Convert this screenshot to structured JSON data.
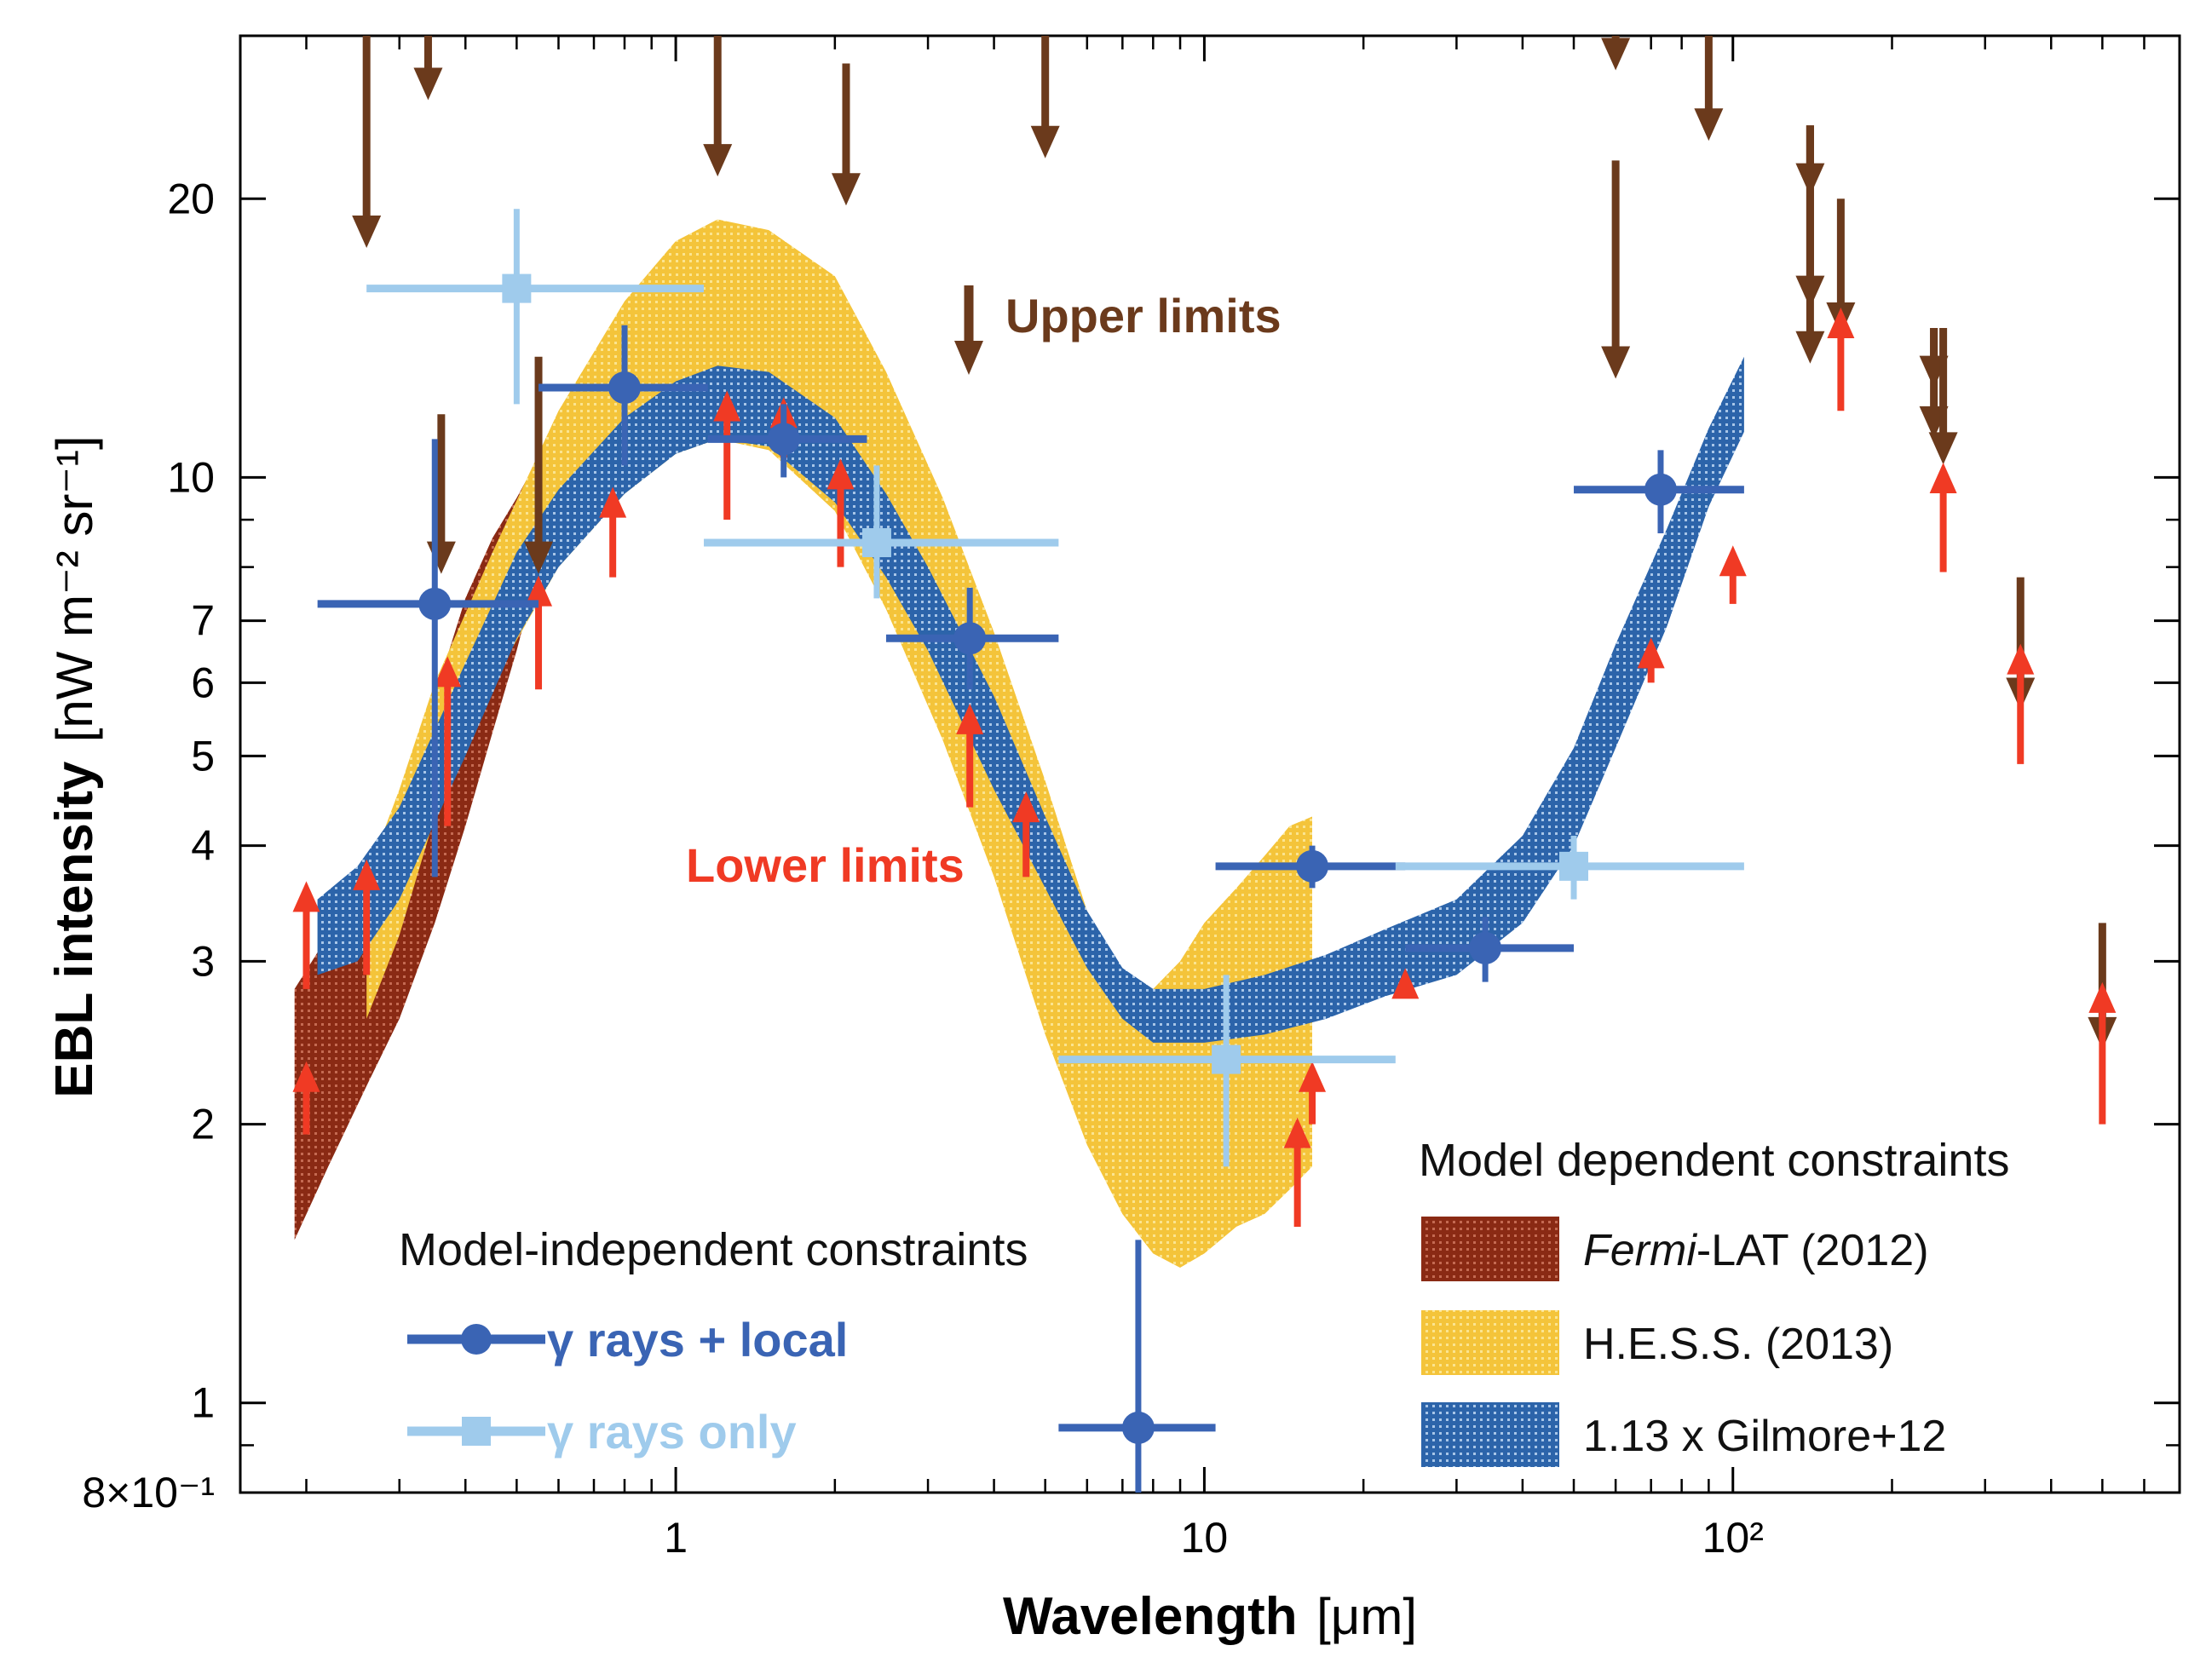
{
  "chart_data": {
    "type": "scatter",
    "title": "",
    "xlabel": "Wavelength",
    "xlabel_unit": "[μm]",
    "ylabel": "EBL intensity",
    "ylabel_unit": "[nW m⁻² sr⁻¹]",
    "xscale": "log",
    "yscale": "log",
    "xlim": [
      0.15,
      700
    ],
    "ylim": [
      0.8,
      30
    ],
    "x_ticks": [
      {
        "value": 1,
        "label": "1"
      },
      {
        "value": 10,
        "label": "10"
      },
      {
        "value": 100,
        "label": "10²"
      }
    ],
    "y_ticks": [
      {
        "value": 0.8,
        "label": "8×10⁻¹"
      },
      {
        "value": 1,
        "label": "1"
      },
      {
        "value": 2,
        "label": "2"
      },
      {
        "value": 3,
        "label": "3"
      },
      {
        "value": 4,
        "label": "4"
      },
      {
        "value": 5,
        "label": "5"
      },
      {
        "value": 6,
        "label": "6"
      },
      {
        "value": 7,
        "label": "7"
      },
      {
        "value": 10,
        "label": "10"
      },
      {
        "value": 20,
        "label": "20"
      }
    ],
    "series": [
      {
        "name": "γ rays + local",
        "color": "#3a64b4",
        "marker": "circle",
        "points": [
          {
            "x": 0.35,
            "y": 7.3,
            "xlo": 0.21,
            "xhi": 0.55,
            "ylo": 3.7,
            "yhi": 11.0
          },
          {
            "x": 0.8,
            "y": 12.5,
            "xlo": 0.55,
            "xhi": 1.15,
            "ylo": 10.3,
            "yhi": 14.6
          },
          {
            "x": 1.6,
            "y": 11.0,
            "xlo": 1.15,
            "xhi": 2.3,
            "ylo": 10.0,
            "yhi": 12.0
          },
          {
            "x": 3.6,
            "y": 6.7,
            "xlo": 2.5,
            "xhi": 5.3,
            "ylo": 5.9,
            "yhi": 7.6
          },
          {
            "x": 7.5,
            "y": 0.94,
            "xlo": 5.3,
            "xhi": 10.5,
            "ylo": 0.78,
            "yhi": 1.5
          },
          {
            "x": 16,
            "y": 3.8,
            "xlo": 10.5,
            "xhi": 24,
            "ylo": 3.6,
            "yhi": 4.0
          },
          {
            "x": 34,
            "y": 3.1,
            "xlo": 24,
            "xhi": 50,
            "ylo": 2.85,
            "yhi": 3.35
          },
          {
            "x": 73,
            "y": 9.7,
            "xlo": 50,
            "xhi": 105,
            "ylo": 8.7,
            "yhi": 10.7
          }
        ]
      },
      {
        "name": "γ rays only",
        "color": "#9fcbec",
        "marker": "square",
        "points": [
          {
            "x": 0.5,
            "y": 16.0,
            "xlo": 0.26,
            "xhi": 1.13,
            "ylo": 12.0,
            "yhi": 19.5
          },
          {
            "x": 2.4,
            "y": 8.5,
            "xlo": 1.13,
            "xhi": 5.3,
            "ylo": 7.4,
            "yhi": 10.3
          },
          {
            "x": 11,
            "y": 2.35,
            "xlo": 5.3,
            "xhi": 23,
            "ylo": 1.8,
            "yhi": 2.9
          },
          {
            "x": 50,
            "y": 3.8,
            "xlo": 23,
            "xhi": 105,
            "ylo": 3.5,
            "yhi": 4.1
          }
        ]
      }
    ],
    "upper_limits": {
      "label": "Upper limits",
      "color": "#6b3a1c",
      "points": [
        {
          "x": 0.26,
          "y": 18.0,
          "from": 35
        },
        {
          "x": 0.34,
          "y": 26.0,
          "from": 35
        },
        {
          "x": 0.36,
          "y": 8.0,
          "from": 11.7
        },
        {
          "x": 0.55,
          "y": 8.0,
          "from": 13.5
        },
        {
          "x": 1.2,
          "y": 21.5,
          "from": 35
        },
        {
          "x": 2.1,
          "y": 20.0,
          "from": 28
        },
        {
          "x": 5.0,
          "y": 22.5,
          "from": 35
        },
        {
          "x": 60,
          "y": 28.0,
          "from": 35
        },
        {
          "x": 60,
          "y": 13.0,
          "from": 22
        },
        {
          "x": 90,
          "y": 23.5,
          "from": 32
        },
        {
          "x": 140,
          "y": 20.5,
          "from": 24
        },
        {
          "x": 140,
          "y": 15.5,
          "from": 24
        },
        {
          "x": 140,
          "y": 13.5,
          "from": 24
        },
        {
          "x": 160,
          "y": 14.5,
          "from": 20
        },
        {
          "x": 240,
          "y": 12.7,
          "from": 14.5
        },
        {
          "x": 240,
          "y": 11.2,
          "from": 14.5
        },
        {
          "x": 250,
          "y": 10.5,
          "from": 14.5
        },
        {
          "x": 350,
          "y": 5.7,
          "from": 7.8
        },
        {
          "x": 500,
          "y": 2.45,
          "from": 3.3
        }
      ]
    },
    "lower_limits": {
      "label": "Lower limits",
      "color": "#f03a24",
      "points": [
        {
          "x": 0.2,
          "y": 2.3,
          "to": 1.95
        },
        {
          "x": 0.2,
          "y": 3.6,
          "to": 2.8
        },
        {
          "x": 0.26,
          "y": 3.8,
          "to": 2.9
        },
        {
          "x": 0.37,
          "y": 6.3,
          "to": 4.2
        },
        {
          "x": 0.55,
          "y": 7.7,
          "to": 5.9
        },
        {
          "x": 0.76,
          "y": 9.6,
          "to": 7.8
        },
        {
          "x": 1.25,
          "y": 12.2,
          "to": 9.0
        },
        {
          "x": 1.6,
          "y": 12.0,
          "to": 10.5
        },
        {
          "x": 2.05,
          "y": 10.3,
          "to": 8.0
        },
        {
          "x": 3.6,
          "y": 5.6,
          "to": 4.4
        },
        {
          "x": 4.6,
          "y": 4.5,
          "to": 3.7
        },
        {
          "x": 15,
          "y": 2.0,
          "to": 1.55
        },
        {
          "x": 16,
          "y": 2.3,
          "to": 2.0
        },
        {
          "x": 24,
          "y": 2.9,
          "to": 2.75
        },
        {
          "x": 70,
          "y": 6.6,
          "to": 6.0
        },
        {
          "x": 100,
          "y": 8.3,
          "to": 7.3
        },
        {
          "x": 160,
          "y": 15.0,
          "to": 11.8
        },
        {
          "x": 250,
          "y": 10.2,
          "to": 7.9
        },
        {
          "x": 350,
          "y": 6.5,
          "to": 4.9
        },
        {
          "x": 500,
          "y": 2.8,
          "to": 2.0
        }
      ]
    },
    "bands": [
      {
        "name": "Fermi-LAT (2012)",
        "name_italic": "Fermi",
        "name_rest": "-LAT (2012)",
        "color": "#8a2a14",
        "x": [
          0.19,
          0.22,
          0.26,
          0.3,
          0.35,
          0.4,
          0.45,
          0.5,
          0.55
        ],
        "lower": [
          1.5,
          1.8,
          2.2,
          2.6,
          3.3,
          4.2,
          5.3,
          6.5,
          8.0
        ],
        "upper": [
          2.8,
          3.2,
          3.7,
          4.5,
          5.8,
          7.4,
          8.6,
          9.5,
          10.5
        ]
      },
      {
        "name": "H.E.S.S. (2013)",
        "color": "#f6c83a",
        "x": [
          0.26,
          0.3,
          0.35,
          0.45,
          0.6,
          0.8,
          1.0,
          1.2,
          1.5,
          2.0,
          2.5,
          3.2,
          4.0,
          5.0,
          6.0,
          7.0,
          8.0,
          9.0,
          10.0,
          11.5,
          13.0,
          14.5,
          16.0
        ],
        "lower": [
          2.6,
          3.2,
          4.3,
          6.0,
          8.0,
          9.6,
          10.6,
          11.0,
          10.7,
          9.2,
          7.2,
          5.2,
          3.7,
          2.5,
          1.9,
          1.6,
          1.45,
          1.4,
          1.45,
          1.55,
          1.6,
          1.7,
          1.8
        ],
        "upper": [
          3.7,
          4.6,
          6.0,
          8.3,
          11.8,
          15.5,
          18.0,
          19.0,
          18.5,
          16.5,
          13.0,
          9.5,
          6.8,
          4.7,
          3.4,
          2.9,
          2.8,
          3.0,
          3.3,
          3.6,
          3.9,
          4.2,
          4.3
        ]
      },
      {
        "name": "1.13 x Gilmore+12",
        "color": "#2f68ad",
        "x": [
          0.21,
          0.25,
          0.3,
          0.4,
          0.5,
          0.6,
          0.8,
          1.0,
          1.2,
          1.5,
          2.0,
          2.5,
          3.0,
          4.0,
          5.0,
          6.0,
          7.0,
          8.0,
          10.0,
          13.0,
          17.0,
          22.0,
          30.0,
          40.0,
          50.0,
          60.0,
          75.0,
          90.0,
          105.0
        ],
        "lower": [
          2.9,
          3.0,
          3.5,
          5.0,
          6.7,
          8.0,
          9.6,
          10.6,
          11.0,
          10.8,
          9.4,
          7.8,
          6.5,
          4.6,
          3.6,
          2.95,
          2.6,
          2.45,
          2.45,
          2.5,
          2.6,
          2.75,
          2.9,
          3.3,
          4.0,
          5.1,
          6.9,
          9.3,
          11.2
        ],
        "upper": [
          3.5,
          3.8,
          4.4,
          6.3,
          8.3,
          9.7,
          11.6,
          12.7,
          13.2,
          13.0,
          11.6,
          9.6,
          8.0,
          5.8,
          4.3,
          3.4,
          2.95,
          2.8,
          2.8,
          2.9,
          3.05,
          3.25,
          3.5,
          4.1,
          5.1,
          6.6,
          8.8,
          11.3,
          13.5
        ]
      }
    ],
    "legend_independent": {
      "title": "Model-independent constraints",
      "placement": "bottom-left",
      "entries": [
        "γ rays + local",
        "γ rays only"
      ]
    },
    "legend_dependent": {
      "title": "Model dependent constraints",
      "placement": "bottom-right",
      "entries": [
        "Fermi-LAT (2012)",
        "H.E.S.S. (2013)",
        "1.13 x Gilmore+12"
      ]
    }
  }
}
